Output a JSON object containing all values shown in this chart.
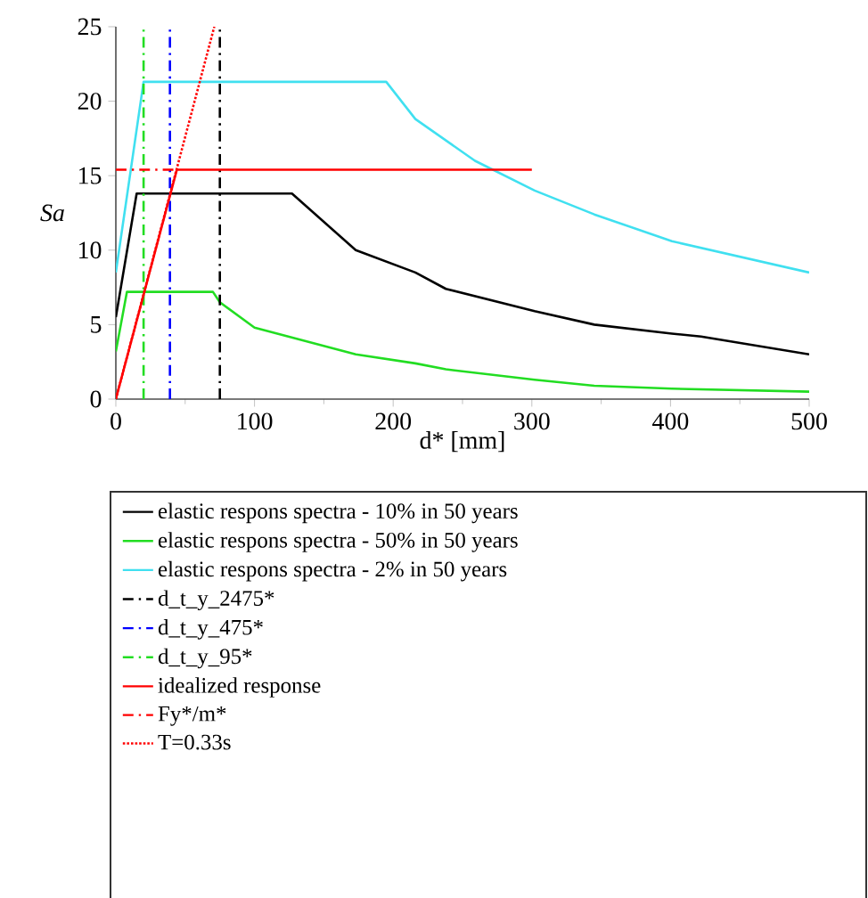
{
  "chart_data": {
    "type": "line",
    "xlabel": "d* [mm]",
    "ylabel": "Sa",
    "xlim": [
      0,
      500
    ],
    "ylim": [
      0,
      25
    ],
    "xticks": [
      0,
      100,
      200,
      300,
      400,
      500
    ],
    "yticks": [
      0,
      5,
      10,
      15,
      20,
      25
    ],
    "legend": "bottom",
    "grid": false,
    "series": [
      {
        "name": "elastic respons spectra - 10% in 50 years",
        "color": "#000000",
        "line_style": "solid",
        "x": [
          0,
          15,
          127,
          173,
          216,
          238,
          302,
          345,
          401,
          422,
          500
        ],
        "values": [
          5.5,
          13.8,
          13.8,
          10.0,
          8.5,
          7.4,
          5.9,
          5.0,
          4.4,
          4.2,
          3.0
        ]
      },
      {
        "name": "elastic respons spectra - 50% in 50 years",
        "color": "#22dd22",
        "line_style": "solid",
        "x": [
          0,
          8,
          70,
          75,
          100,
          173,
          216,
          238,
          302,
          345,
          401,
          500
        ],
        "values": [
          3.2,
          7.2,
          7.2,
          6.5,
          4.8,
          3.0,
          2.4,
          2.0,
          1.3,
          0.9,
          0.7,
          0.5
        ]
      },
      {
        "name": "elastic respons spectra - 2% in 50 years",
        "color": "#40e0f0",
        "line_style": "solid",
        "x": [
          0,
          20,
          195,
          216,
          259,
          302,
          345,
          401,
          500
        ],
        "values": [
          8.5,
          21.3,
          21.3,
          18.8,
          16.0,
          14.0,
          12.4,
          10.6,
          8.5
        ]
      },
      {
        "name": "d_t_y_2475*",
        "color": "#000000",
        "line_style": "dashdot",
        "x": [
          75,
          75
        ],
        "values": [
          0,
          25
        ]
      },
      {
        "name": "d_t_y_475*",
        "color": "#0000ff",
        "line_style": "dashdot",
        "x": [
          39,
          39
        ],
        "values": [
          0,
          25
        ]
      },
      {
        "name": "d_t_y_95*",
        "color": "#22dd22",
        "line_style": "dashdot",
        "x": [
          20,
          20
        ],
        "values": [
          0,
          25
        ]
      },
      {
        "name": "idealized response",
        "color": "#ff0000",
        "line_style": "solid",
        "x": [
          0,
          44,
          300
        ],
        "values": [
          0,
          15.4,
          15.4
        ]
      },
      {
        "name": "Fy*/m*",
        "color": "#ff0000",
        "line_style": "dashdot",
        "x": [
          0,
          44
        ],
        "values": [
          15.4,
          15.4
        ]
      },
      {
        "name": "T=0.33s",
        "color": "#ff0000",
        "line_style": "dotted",
        "x": [
          0,
          71
        ],
        "values": [
          0,
          25
        ]
      }
    ]
  }
}
